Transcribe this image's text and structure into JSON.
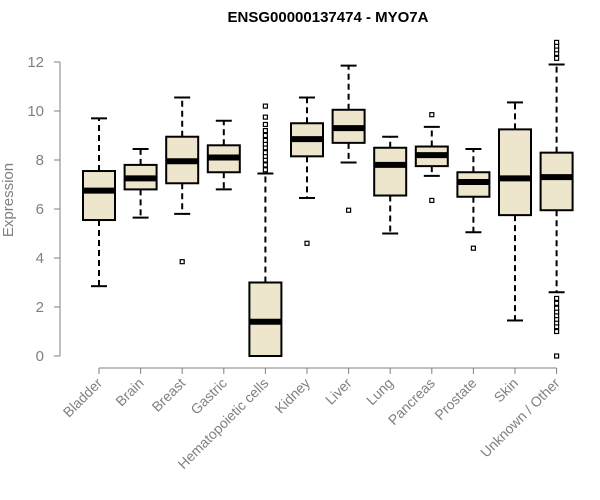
{
  "chart_data": {
    "type": "boxplot",
    "title": "ENSG00000137474 - MYO7A",
    "xlabel": "",
    "ylabel": "Expression",
    "ylim": [
      0,
      12.6
    ],
    "yticks": [
      0,
      2,
      4,
      6,
      8,
      10,
      12
    ],
    "colors": {
      "box_fill": "#ede6cc",
      "outline": "#000000",
      "axis": "#808080"
    },
    "categories": [
      "Bladder",
      "Brain",
      "Breast",
      "Gastric",
      "Hematopoietic cells",
      "Kidney",
      "Liver",
      "Lung",
      "Pancreas",
      "Prostate",
      "Skin",
      "Unknown / Other"
    ],
    "boxes": [
      {
        "name": "Bladder",
        "whisker_low": 2.85,
        "q1": 5.55,
        "median": 6.75,
        "q3": 7.55,
        "whisker_high": 9.7,
        "outliers": []
      },
      {
        "name": "Brain",
        "whisker_low": 5.65,
        "q1": 6.8,
        "median": 7.25,
        "q3": 7.8,
        "whisker_high": 8.45,
        "outliers": []
      },
      {
        "name": "Breast",
        "whisker_low": 5.8,
        "q1": 7.05,
        "median": 7.95,
        "q3": 8.95,
        "whisker_high": 10.55,
        "outliers": [
          3.85
        ]
      },
      {
        "name": "Gastric",
        "whisker_low": 6.8,
        "q1": 7.5,
        "median": 8.1,
        "q3": 8.6,
        "whisker_high": 9.6,
        "outliers": []
      },
      {
        "name": "Hematopoietic cells",
        "whisker_low": 0.0,
        "q1": 0.0,
        "median": 1.4,
        "q3": 3.0,
        "whisker_high": 7.45,
        "outliers": [
          7.6,
          7.8,
          8.0,
          8.15,
          8.3,
          8.5,
          8.65,
          8.8,
          9.0,
          9.2,
          9.45,
          9.75,
          10.2
        ]
      },
      {
        "name": "Kidney",
        "whisker_low": 6.45,
        "q1": 8.15,
        "median": 8.85,
        "q3": 9.5,
        "whisker_high": 10.55,
        "outliers": [
          4.6
        ]
      },
      {
        "name": "Liver",
        "whisker_low": 7.9,
        "q1": 8.7,
        "median": 9.3,
        "q3": 10.05,
        "whisker_high": 11.85,
        "outliers": [
          5.95
        ]
      },
      {
        "name": "Lung",
        "whisker_low": 5.0,
        "q1": 6.55,
        "median": 7.8,
        "q3": 8.5,
        "whisker_high": 8.95,
        "outliers": []
      },
      {
        "name": "Pancreas",
        "whisker_low": 7.35,
        "q1": 7.75,
        "median": 8.2,
        "q3": 8.55,
        "whisker_high": 9.35,
        "outliers": [
          6.35,
          9.85
        ]
      },
      {
        "name": "Prostate",
        "whisker_low": 5.05,
        "q1": 6.5,
        "median": 7.1,
        "q3": 7.5,
        "whisker_high": 8.45,
        "outliers": [
          4.4
        ]
      },
      {
        "name": "Skin",
        "whisker_low": 1.45,
        "q1": 5.75,
        "median": 7.25,
        "q3": 9.25,
        "whisker_high": 10.35,
        "outliers": []
      },
      {
        "name": "Unknown / Other",
        "whisker_low": 2.6,
        "q1": 5.95,
        "median": 7.3,
        "q3": 8.3,
        "whisker_high": 11.9,
        "outliers": [
          0.0,
          1.0,
          1.2,
          1.35,
          1.5,
          1.65,
          1.8,
          1.95,
          2.15,
          2.35,
          12.15,
          12.35,
          12.5,
          12.65,
          12.8
        ]
      }
    ]
  }
}
